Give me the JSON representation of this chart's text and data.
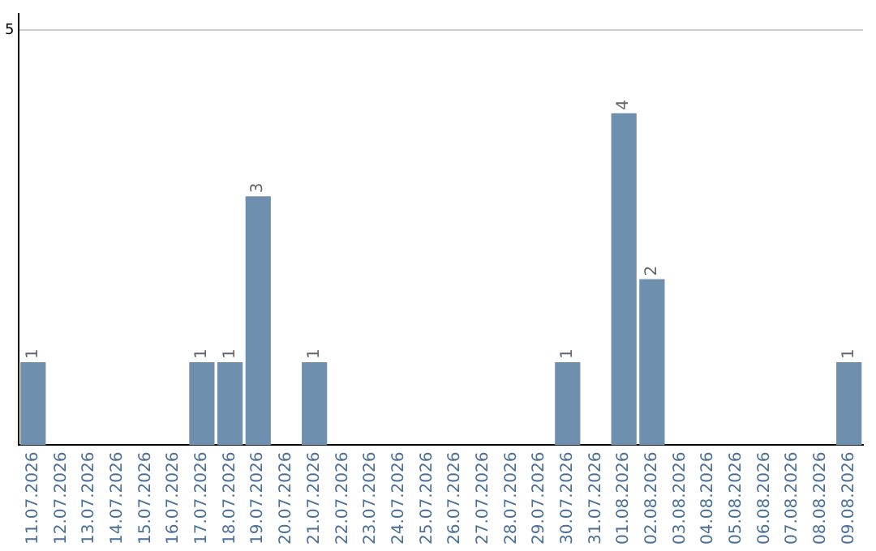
{
  "chart_data": {
    "type": "bar",
    "categories": [
      "11.07.2026",
      "12.07.2026",
      "13.07.2026",
      "14.07.2026",
      "15.07.2026",
      "16.07.2026",
      "17.07.2026",
      "18.07.2026",
      "19.07.2026",
      "20.07.2026",
      "21.07.2026",
      "22.07.2026",
      "23.07.2026",
      "24.07.2026",
      "25.07.2026",
      "26.07.2026",
      "27.07.2026",
      "28.07.2026",
      "29.07.2026",
      "30.07.2026",
      "31.07.2026",
      "01.08.2026",
      "02.08.2026",
      "03.08.2026",
      "04.08.2026",
      "05.08.2026",
      "06.08.2026",
      "07.08.2026",
      "08.08.2026",
      "09.08.2026"
    ],
    "values": [
      1,
      0,
      0,
      0,
      0,
      0,
      1,
      1,
      3,
      0,
      1,
      0,
      0,
      0,
      0,
      0,
      0,
      0,
      0,
      1,
      0,
      4,
      2,
      0,
      0,
      0,
      0,
      0,
      0,
      1
    ],
    "value_labels": [
      "1",
      null,
      null,
      null,
      null,
      null,
      "1",
      "1",
      "3",
      null,
      "1",
      null,
      null,
      null,
      null,
      null,
      null,
      null,
      null,
      "1",
      null,
      "4",
      "2",
      null,
      null,
      null,
      null,
      null,
      null,
      "1"
    ],
    "color": "#6f8fae",
    "ylim": [
      0,
      5.2
    ],
    "yticks": [
      5
    ],
    "grid": "y",
    "legend": false
  }
}
